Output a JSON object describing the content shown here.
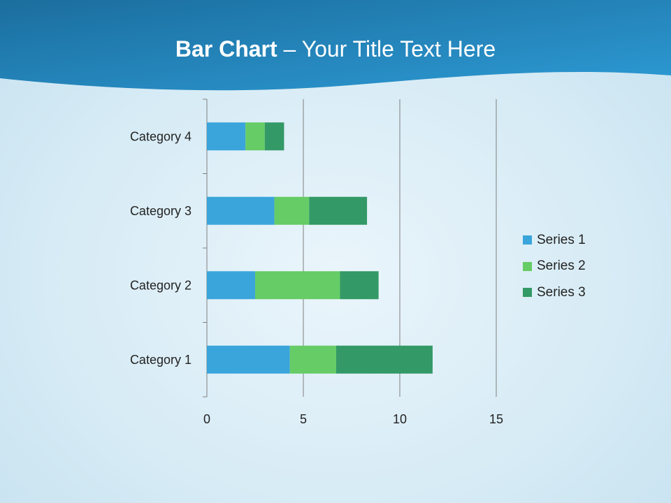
{
  "title": {
    "bold": "Bar Chart",
    "rest": " – Your Title Text Here"
  },
  "chart_data": {
    "type": "bar",
    "orientation": "horizontal",
    "stacked": true,
    "categories": [
      "Category 1",
      "Category 2",
      "Category 3",
      "Category 4"
    ],
    "series": [
      {
        "name": "Series 1",
        "values": [
          4.3,
          2.5,
          3.5,
          2.0
        ],
        "color": "#3aa5db"
      },
      {
        "name": "Series 2",
        "values": [
          2.4,
          4.4,
          1.8,
          1.0
        ],
        "color": "#66cc66"
      },
      {
        "name": "Series 3",
        "values": [
          5.0,
          2.0,
          3.0,
          1.0
        ],
        "color": "#339966"
      }
    ],
    "xlim": [
      0,
      15
    ],
    "xticks": [
      0,
      5,
      10,
      15
    ],
    "grid": "vertical",
    "legend": "right"
  }
}
